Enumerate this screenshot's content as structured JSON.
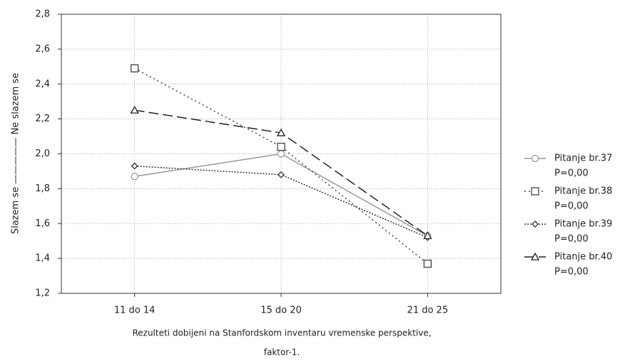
{
  "chart_data": {
    "type": "line",
    "ylabel": "Slazem se ————— Ne slazem se",
    "xlabel": [
      "Rezulteti dobijeni na Stanfordskom inventaru vremenske perspektive,",
      "faktor-1."
    ],
    "categories": [
      "11 do 14",
      "15 do 20",
      "21 do 25"
    ],
    "ylim": [
      1.2,
      2.8
    ],
    "yticks": [
      {
        "value": 1.2,
        "label": "1,2"
      },
      {
        "value": 1.4,
        "label": "1,4"
      },
      {
        "value": 1.6,
        "label": "1,6"
      },
      {
        "value": 1.8,
        "label": "1,8"
      },
      {
        "value": 2.0,
        "label": "2,0"
      },
      {
        "value": 2.2,
        "label": "2,2"
      },
      {
        "value": 2.4,
        "label": "2,4"
      },
      {
        "value": 2.6,
        "label": "2,6"
      },
      {
        "value": 2.8,
        "label": "2,8"
      }
    ],
    "grid": true,
    "legend": "right",
    "series": [
      {
        "name": "Pitanje br.37",
        "p_label": "P=0,00",
        "color": "#999999",
        "marker": "circle",
        "line_style": "solid",
        "values": [
          1.87,
          2.0,
          1.53
        ]
      },
      {
        "name": "Pitanje br.38",
        "p_label": "P=0,00",
        "color": "#444444",
        "marker": "square",
        "line_style": "dotted",
        "values": [
          2.49,
          2.04,
          1.37
        ]
      },
      {
        "name": "Pitanje br.39",
        "p_label": "P=0,00",
        "color": "#333333",
        "marker": "diamond",
        "line_style": "densedot",
        "values": [
          1.93,
          1.88,
          1.52
        ]
      },
      {
        "name": "Pitanje br.40",
        "p_label": "P=0,00",
        "color": "#222222",
        "marker": "triangle",
        "line_style": "dashed",
        "values": [
          2.25,
          2.12,
          1.53
        ]
      }
    ]
  }
}
